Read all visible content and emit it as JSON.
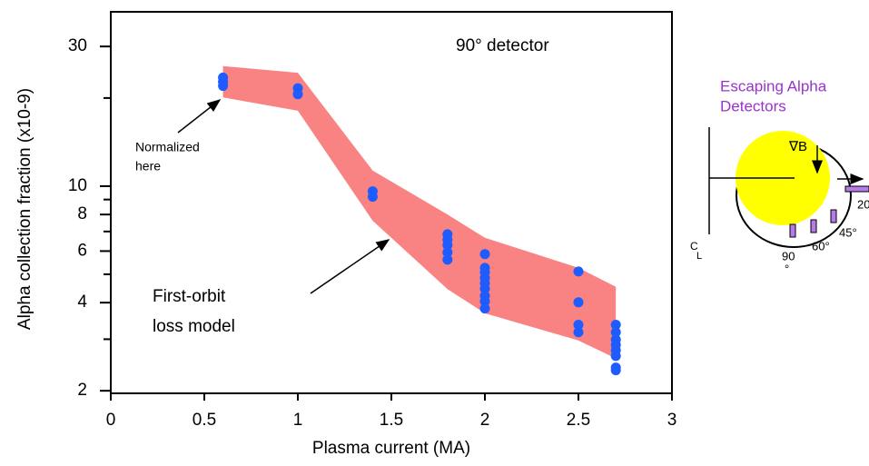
{
  "chart_data": {
    "type": "scatter",
    "xlabel": "Plasma current (MA)",
    "ylabel": "Alpha collection fraction (x10-9)",
    "log_y": true,
    "xlim": [
      0,
      3
    ],
    "xticks": [
      0,
      0.5,
      1,
      1.5,
      2,
      2.5,
      3
    ],
    "ylim": [
      1.96,
      39.4
    ],
    "yticks": [
      2,
      4,
      6,
      8,
      10,
      30
    ],
    "yticks_minor": [
      3,
      5,
      7,
      9,
      20
    ],
    "series": [
      {
        "color": "#1f5cff",
        "x": [
          0.6,
          0.6,
          0.6,
          1.0,
          1.0,
          1.4,
          1.4,
          1.8,
          1.8,
          1.8,
          1.8,
          1.8,
          2.0,
          2.0,
          2.0,
          2.0,
          2.0,
          2.0,
          2.0,
          2.0,
          2.0,
          2.5,
          2.5,
          2.5,
          2.5,
          2.7,
          2.7,
          2.7,
          2.7,
          2.7,
          2.7,
          2.7,
          2.7
        ],
        "values": [
          23.5,
          22.7,
          22.0,
          21.6,
          20.6,
          9.6,
          9.2,
          6.85,
          6.56,
          6.29,
          5.94,
          5.61,
          5.86,
          5.26,
          5.08,
          4.86,
          4.66,
          4.46,
          4.22,
          4.04,
          3.82,
          5.11,
          4.01,
          3.36,
          3.17,
          3.36,
          3.17,
          2.99,
          2.87,
          2.75,
          2.63,
          2.4,
          2.35
        ]
      }
    ],
    "band": {
      "color": "#f98282",
      "x": [
        0.6,
        1.0,
        1.4,
        1.8,
        2.0,
        2.5,
        2.7
      ],
      "upper": [
        25.7,
        24.4,
        11.3,
        8.0,
        6.66,
        5.26,
        4.53
      ],
      "lower": [
        20.1,
        18.1,
        7.62,
        4.45,
        3.68,
        2.97,
        2.58
      ]
    },
    "annotations": {
      "detector": "90° detector",
      "normalized": [
        "Normalized",
        "here"
      ],
      "model": [
        "First-orbit",
        "loss model"
      ]
    }
  },
  "diagram": {
    "title": [
      "Escaping Alpha",
      "Detectors"
    ],
    "gradb": "∇B",
    "angles": [
      "20",
      "45°",
      "60°",
      "90",
      "°"
    ],
    "centerline": [
      "C",
      "L"
    ]
  }
}
